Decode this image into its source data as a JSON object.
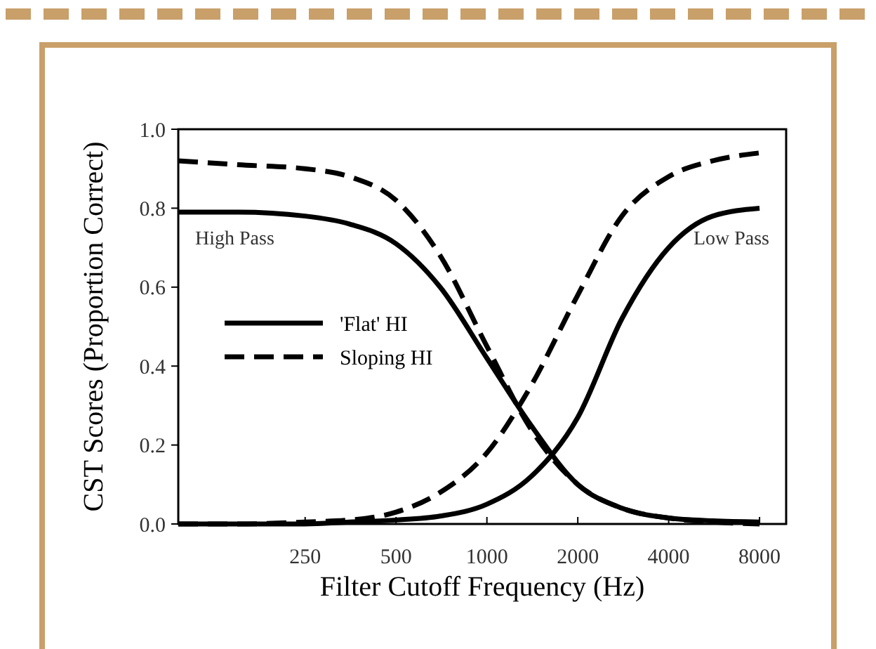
{
  "chart_data": {
    "type": "line",
    "xlabel": "Filter Cutoff Frequency (Hz)",
    "ylabel": "CST Scores (Proportion Correct)",
    "log": "x",
    "x": [
      95,
      150,
      250,
      350,
      500,
      700,
      1000,
      1400,
      2000,
      2800,
      4000,
      5600,
      8000
    ],
    "xlim": [
      95,
      9800
    ],
    "xticks": [
      250,
      500,
      1000,
      2000,
      4000,
      8000
    ],
    "ylim": [
      0,
      1
    ],
    "yticks": [
      {
        "value": 0,
        "label": "0.0"
      },
      {
        "value": 0.2,
        "label": "0.2"
      },
      {
        "value": 0.4,
        "label": "0.4"
      },
      {
        "value": 0.6,
        "label": "0.6"
      },
      {
        "value": 0.8,
        "label": "0.8"
      },
      {
        "value": 1,
        "label": "1.0"
      }
    ],
    "legend": "left",
    "series": [
      {
        "name": "'Flat' HI",
        "color": "#000000",
        "line_style": "solid",
        "values": [
          0.79,
          0.79,
          0.78,
          0.76,
          0.71,
          0.6,
          0.42,
          0.25,
          0.1,
          0.04,
          0.015,
          0.008,
          0.005
        ]
      },
      {
        "name": "Sloping HI",
        "color": "#000000",
        "line_style": "dashed",
        "values": [
          0.92,
          0.91,
          0.9,
          0.88,
          0.82,
          0.68,
          0.45,
          0.24,
          0.1,
          0.04,
          0.015,
          0.005,
          0
        ]
      },
      {
        "color": "#000000",
        "line_style": "solid",
        "values": [
          0,
          0,
          0,
          0.005,
          0.01,
          0.02,
          0.05,
          0.12,
          0.27,
          0.52,
          0.7,
          0.78,
          0.8
        ]
      },
      {
        "color": "#000000",
        "line_style": "dashed",
        "values": [
          0,
          0,
          0.005,
          0.01,
          0.03,
          0.08,
          0.18,
          0.35,
          0.58,
          0.78,
          0.88,
          0.92,
          0.94
        ]
      }
    ],
    "annotations": [
      "High Pass",
      "Low Pass"
    ]
  }
}
